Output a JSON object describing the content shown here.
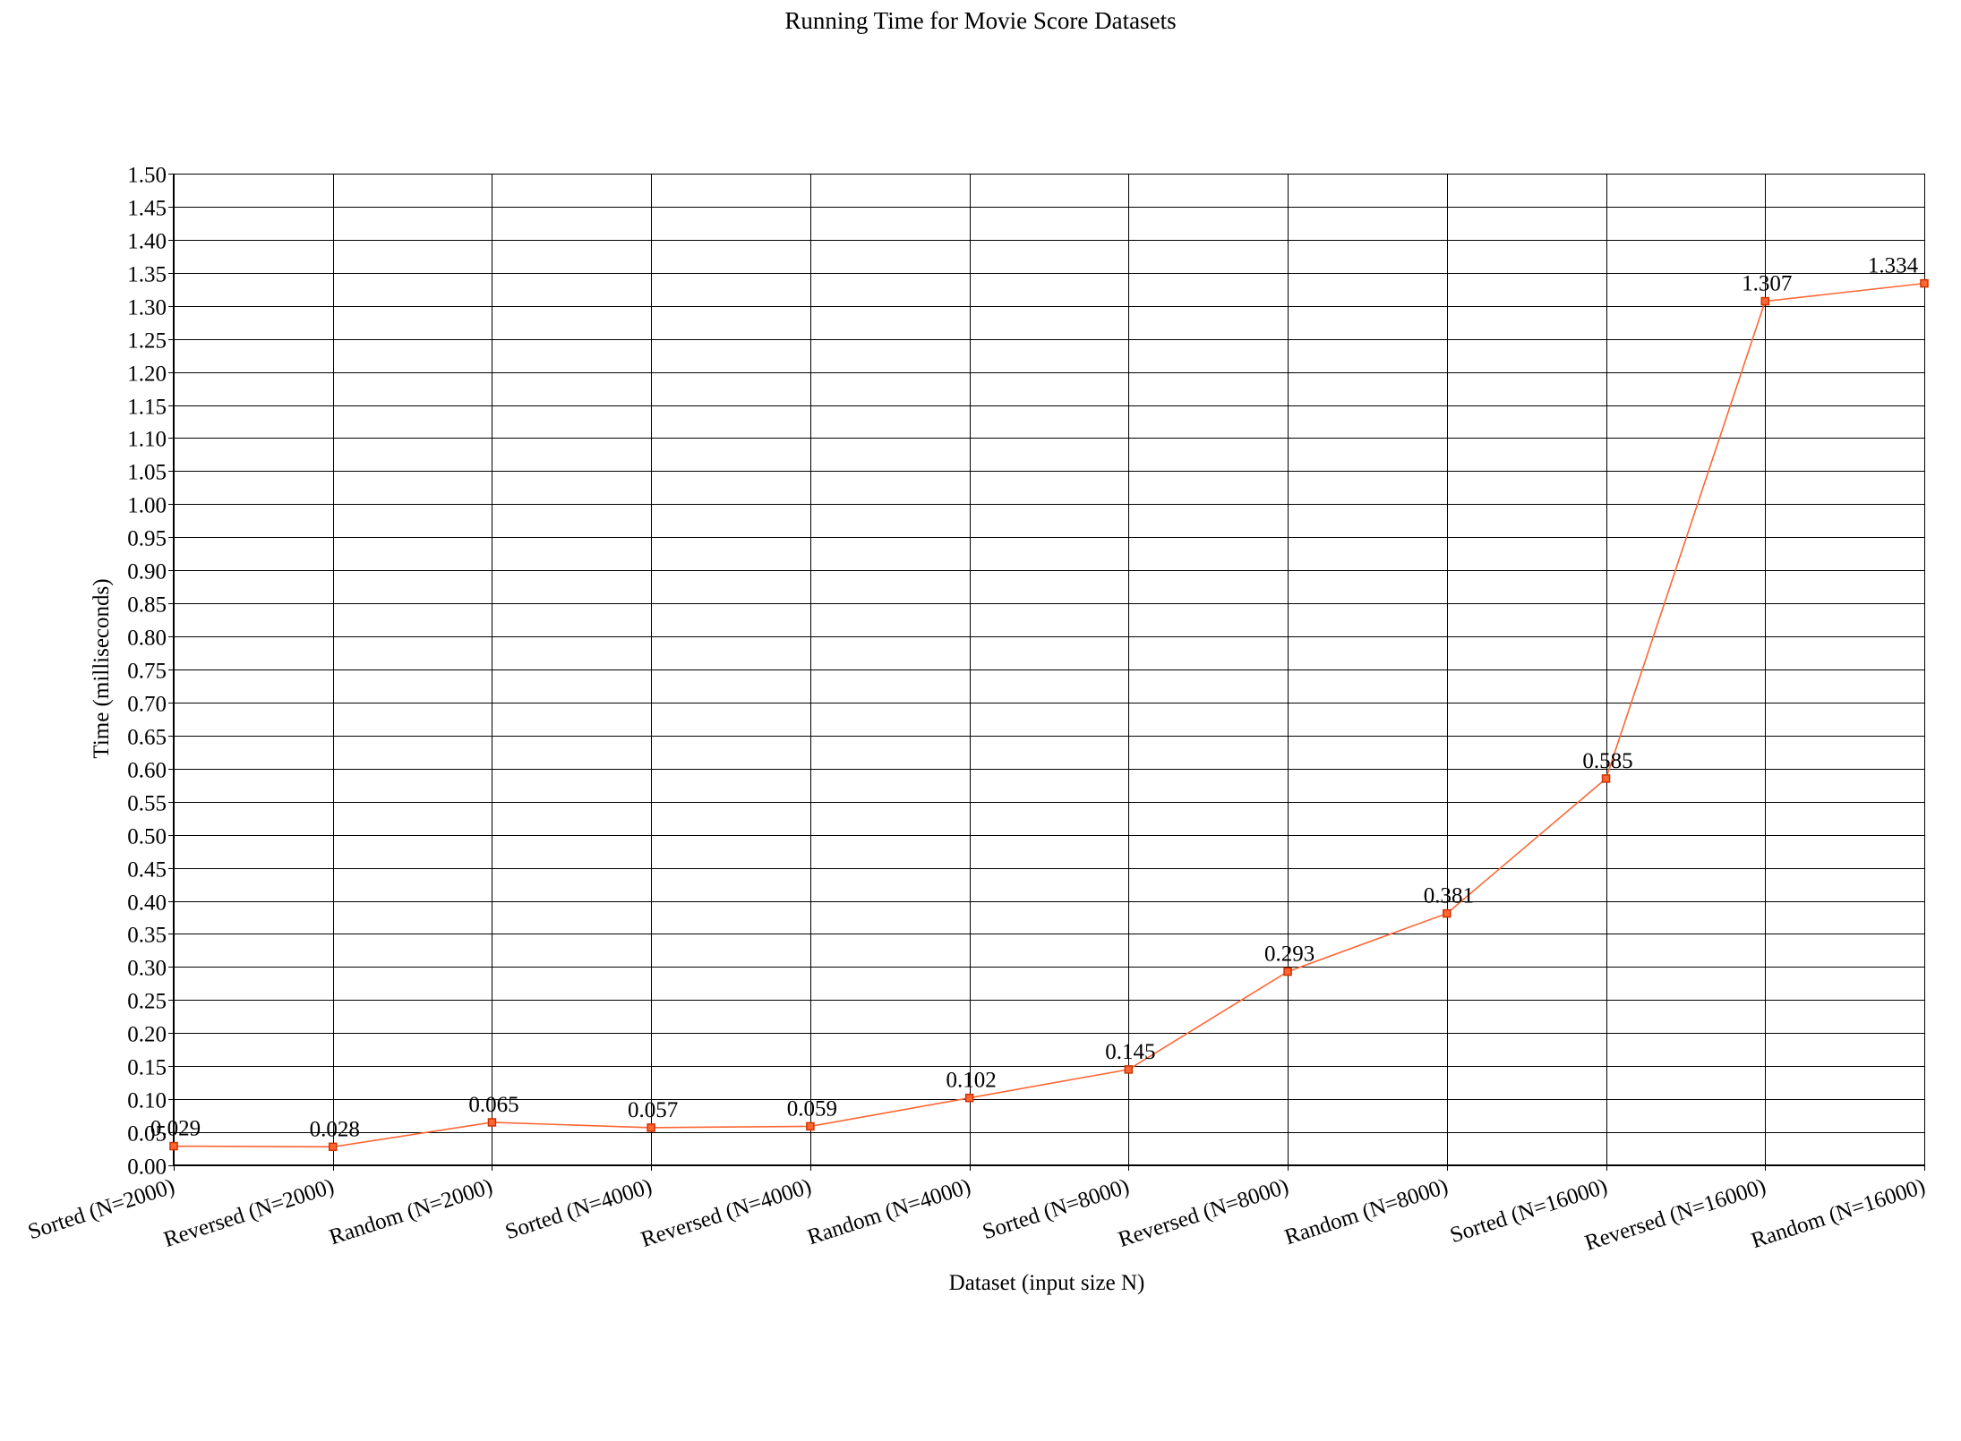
{
  "chart_data": {
    "type": "line",
    "title": "Running Time for Movie Score Datasets",
    "xlabel": "Dataset (input size N)",
    "ylabel": "Time (milliseconds)",
    "ylim": [
      0,
      1.5
    ],
    "ytick_step": 0.05,
    "yticks": [
      "0.00",
      "0.05",
      "0.10",
      "0.15",
      "0.20",
      "0.25",
      "0.30",
      "0.35",
      "0.40",
      "0.45",
      "0.50",
      "0.55",
      "0.60",
      "0.65",
      "0.70",
      "0.75",
      "0.80",
      "0.85",
      "0.90",
      "0.95",
      "1.00",
      "1.05",
      "1.10",
      "1.15",
      "1.20",
      "1.25",
      "1.30",
      "1.35",
      "1.40",
      "1.45",
      "1.50"
    ],
    "grid": true,
    "legend": "none",
    "categories": [
      "Sorted (N=2000)",
      "Reversed (N=2000)",
      "Random (N=2000)",
      "Sorted (N=4000)",
      "Reversed (N=4000)",
      "Random (N=4000)",
      "Sorted (N=8000)",
      "Reversed (N=8000)",
      "Random (N=8000)",
      "Sorted (N=16000)",
      "Reversed (N=16000)",
      "Random (N=16000)"
    ],
    "series": [
      {
        "values": [
          0.029,
          0.028,
          0.065,
          0.057,
          0.059,
          0.102,
          0.145,
          0.293,
          0.381,
          0.585,
          1.307,
          1.334
        ],
        "labels": [
          "0.029",
          "0.028",
          "0.065",
          "0.057",
          "0.059",
          "0.102",
          "0.145",
          "0.293",
          "0.381",
          "0.585",
          "1.307",
          "1.334"
        ],
        "color": "#ff6633",
        "marker_color": "#cc3300"
      }
    ]
  }
}
